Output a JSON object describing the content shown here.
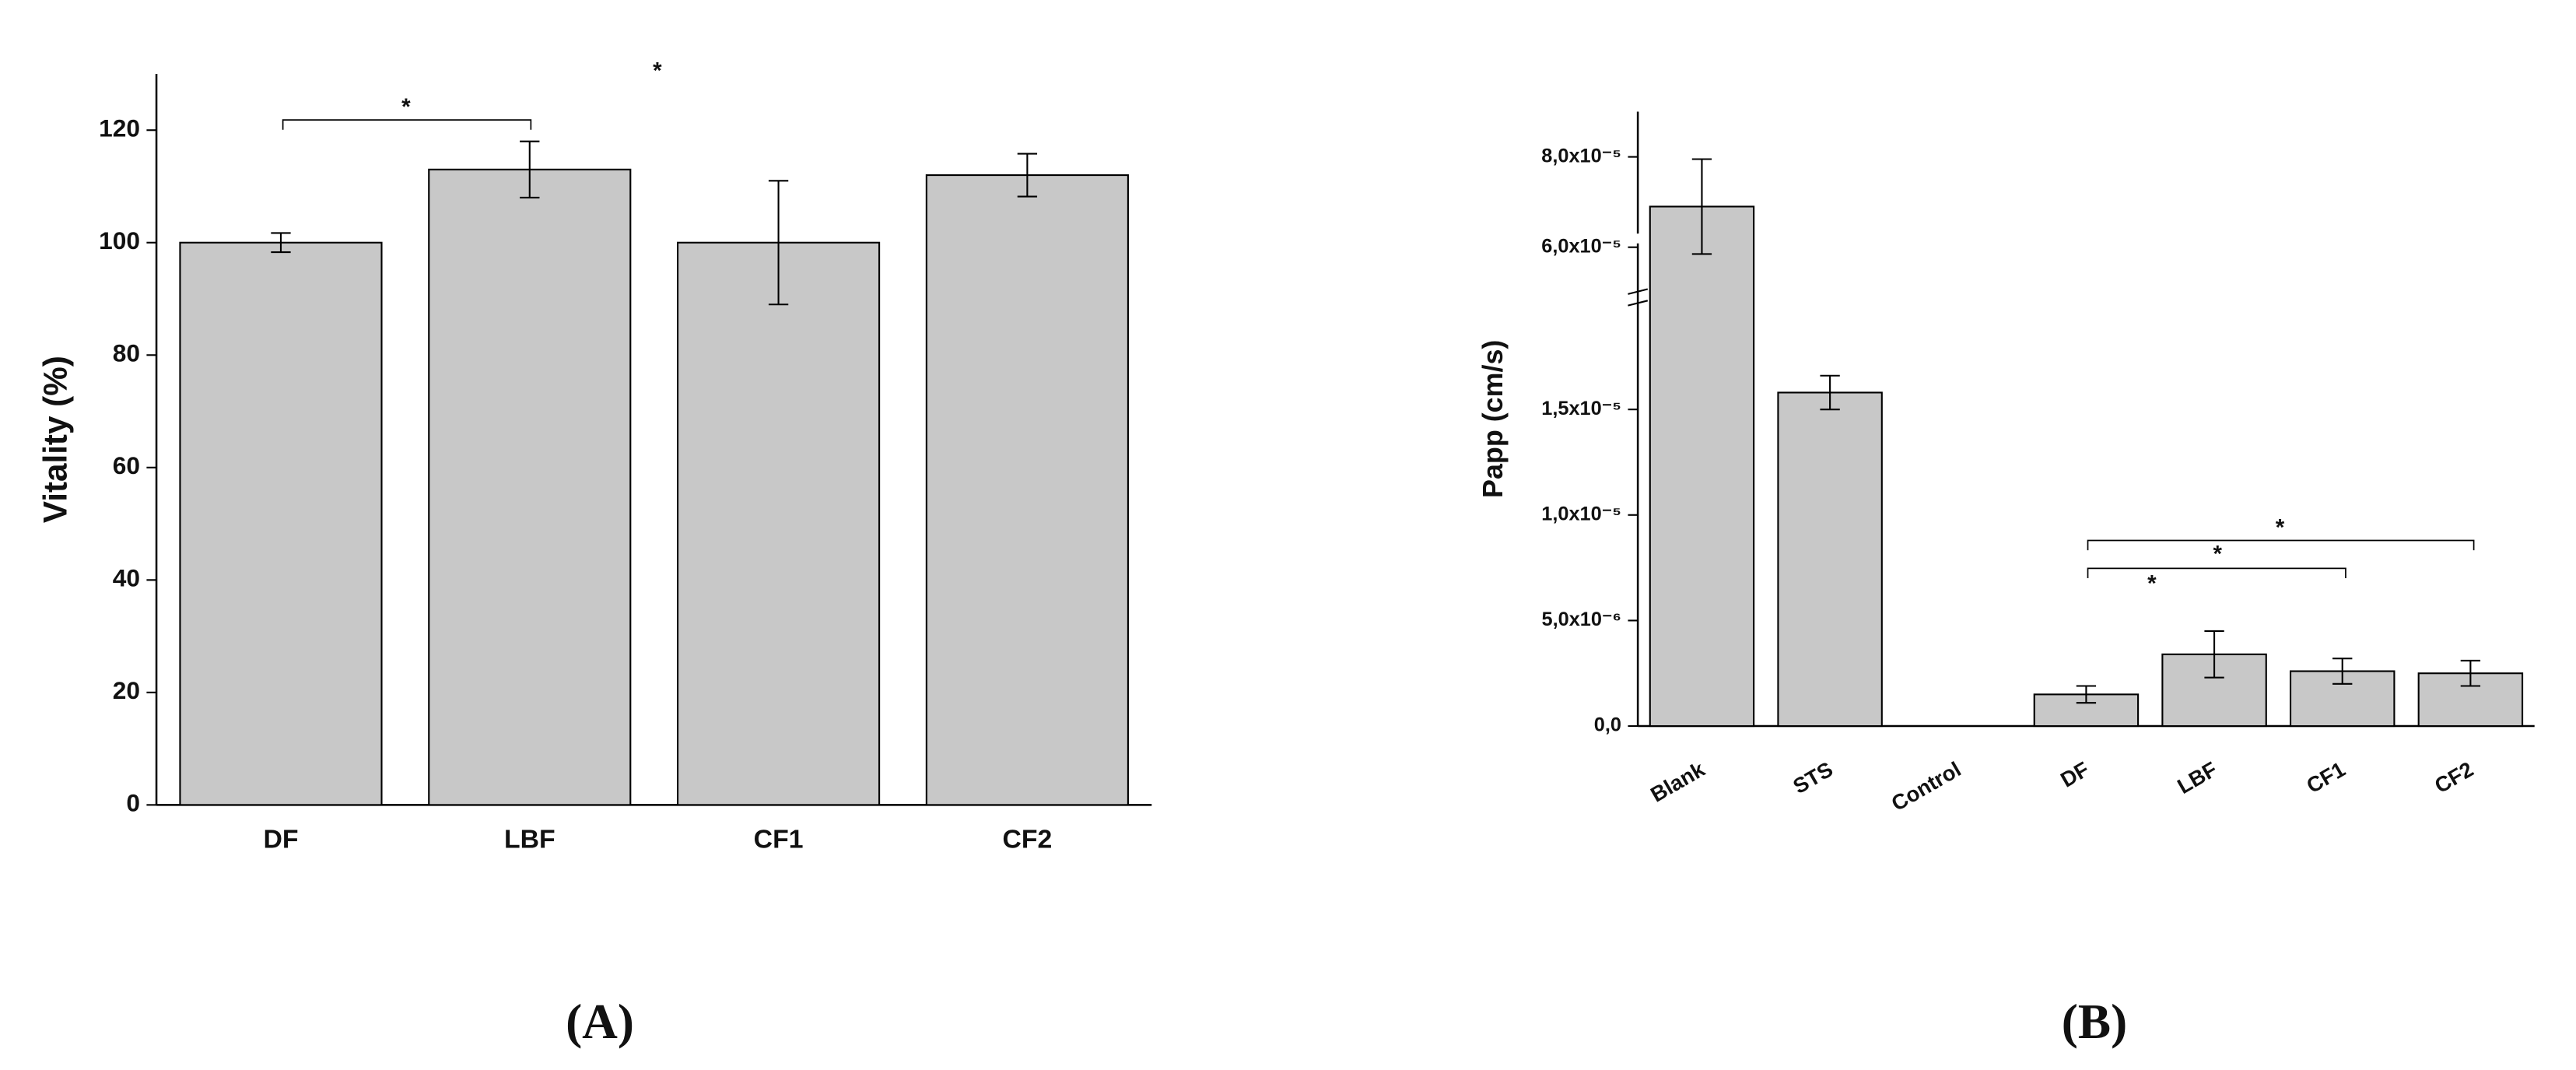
{
  "chart_data": [
    {
      "type": "bar",
      "panel_label": "(A)",
      "y_label": "Vitality (%)",
      "categories": [
        "DF",
        "LBF",
        "CF1",
        "CF2"
      ],
      "values": [
        100,
        113,
        100,
        112
      ],
      "errors": [
        1.7,
        5,
        11,
        3.8
      ],
      "color": "#c8c8c8",
      "ylim": [
        0,
        130
      ],
      "yticks": [
        0,
        20,
        40,
        60,
        80,
        100,
        120
      ],
      "annotations": [
        "*",
        "*"
      ]
    },
    {
      "type": "bar",
      "panel_label": "(B)",
      "y_label": "Papp (cm/s)",
      "categories": [
        "Blank",
        "STS",
        "Control",
        "DF",
        "LBF",
        "CF1",
        "CF2"
      ],
      "values": [
        6.9e-05,
        1.58e-05,
        0,
        1.5e-06,
        3.4e-06,
        2.6e-06,
        2.5e-06
      ],
      "errors": [
        1.05e-05,
        8e-07,
        null,
        4e-07,
        1.1e-06,
        6e-07,
        6e-07
      ],
      "color": "#c8c8c8",
      "ylim": [
        0,
        9e-05
      ],
      "axis_break": [
        2e-05,
        5e-05
      ],
      "yticks": [
        {
          "value": 0,
          "label": "0,0"
        },
        {
          "value": 5e-06,
          "label": "5,0x10⁻⁶"
        },
        {
          "value": 1e-05,
          "label": "1,0x10⁻⁵"
        },
        {
          "value": 1.5e-05,
          "label": "1,5x10⁻⁵"
        },
        {
          "value": 6e-05,
          "label": "6,0x10⁻⁵"
        },
        {
          "value": 8e-05,
          "label": "8,0x10⁻⁵"
        }
      ],
      "annotations": [
        "*",
        "*",
        "*"
      ]
    }
  ]
}
